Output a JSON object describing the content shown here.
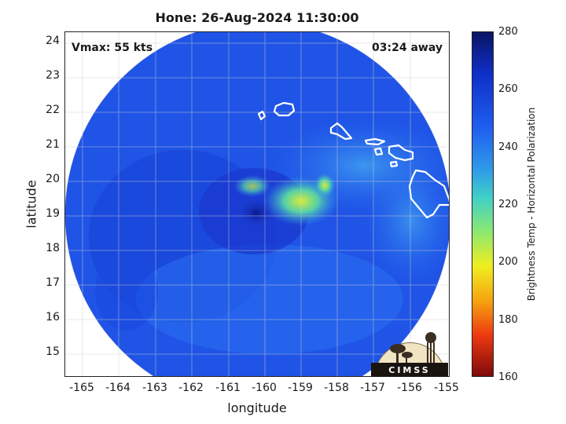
{
  "title": "Hone: 26-Aug-2024 11:30:00",
  "vmax_text": "Vmax: 55 kts",
  "away_text": "03:24 away",
  "xlabel": "longitude",
  "ylabel": "latitude",
  "colorbar_label": "Brightness Temp - Horizontal Polarization",
  "logo_text": "CIMSS",
  "x_ticks": [
    "-165",
    "-164",
    "-163",
    "-162",
    "-161",
    "-160",
    "-159",
    "-158",
    "-157",
    "-156",
    "-155"
  ],
  "y_ticks": [
    "24",
    "23",
    "22",
    "21",
    "20",
    "19",
    "18",
    "17",
    "16",
    "15"
  ],
  "colorbar_ticks": [
    "280",
    "260",
    "240",
    "220",
    "200",
    "180",
    "160"
  ],
  "colors": {
    "background_blue": "#1f54e6",
    "storm_core": "#c8e83a",
    "coastline": "#ffffff"
  },
  "chart_data": {
    "type": "heatmap",
    "title": "Hone: 26-Aug-2024 11:30:00",
    "xlabel": "longitude",
    "ylabel": "latitude",
    "xlim": [
      -165.6,
      -155
    ],
    "ylim": [
      14.3,
      24.3
    ],
    "colorbar": {
      "label": "Brightness Temp - Horizontal Polarization",
      "range": [
        160,
        280
      ]
    },
    "grid": true,
    "storm_center": {
      "lon": -160.4,
      "lat": 19.2
    },
    "annotations": [
      "Vmax: 55 kts",
      "03:24 away"
    ]
  }
}
